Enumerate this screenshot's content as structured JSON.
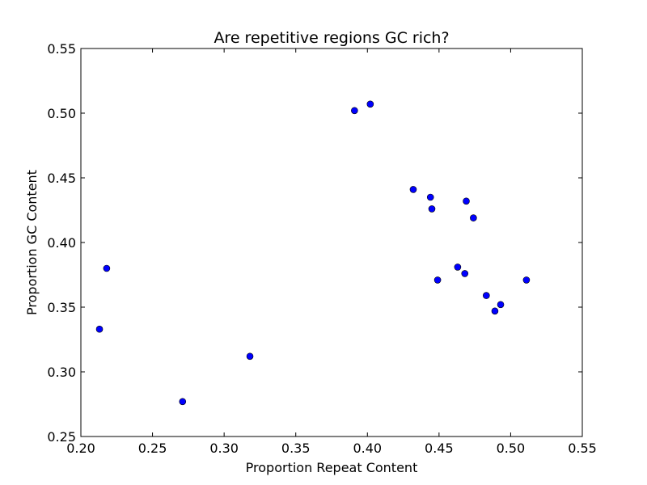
{
  "chart_data": {
    "type": "scatter",
    "title": "Are repetitive regions GC rich?",
    "xlabel": "Proportion Repeat Content",
    "ylabel": "Proportion GC Content",
    "xlim": [
      0.2,
      0.55
    ],
    "ylim": [
      0.25,
      0.55
    ],
    "xticks": [
      "0.20",
      "0.25",
      "0.30",
      "0.35",
      "0.40",
      "0.45",
      "0.50",
      "0.55"
    ],
    "yticks": [
      "0.25",
      "0.30",
      "0.35",
      "0.40",
      "0.45",
      "0.50",
      "0.55"
    ],
    "grid": false,
    "marker_color": "#0000ff",
    "marker_edge_color": "#000000",
    "points": [
      {
        "x": 0.213,
        "y": 0.333
      },
      {
        "x": 0.218,
        "y": 0.38
      },
      {
        "x": 0.271,
        "y": 0.277
      },
      {
        "x": 0.318,
        "y": 0.312
      },
      {
        "x": 0.391,
        "y": 0.502
      },
      {
        "x": 0.402,
        "y": 0.507
      },
      {
        "x": 0.432,
        "y": 0.441
      },
      {
        "x": 0.444,
        "y": 0.435
      },
      {
        "x": 0.445,
        "y": 0.426
      },
      {
        "x": 0.449,
        "y": 0.371
      },
      {
        "x": 0.463,
        "y": 0.381
      },
      {
        "x": 0.468,
        "y": 0.376
      },
      {
        "x": 0.469,
        "y": 0.432
      },
      {
        "x": 0.474,
        "y": 0.419
      },
      {
        "x": 0.483,
        "y": 0.359
      },
      {
        "x": 0.489,
        "y": 0.347
      },
      {
        "x": 0.493,
        "y": 0.352
      },
      {
        "x": 0.511,
        "y": 0.371
      }
    ]
  }
}
